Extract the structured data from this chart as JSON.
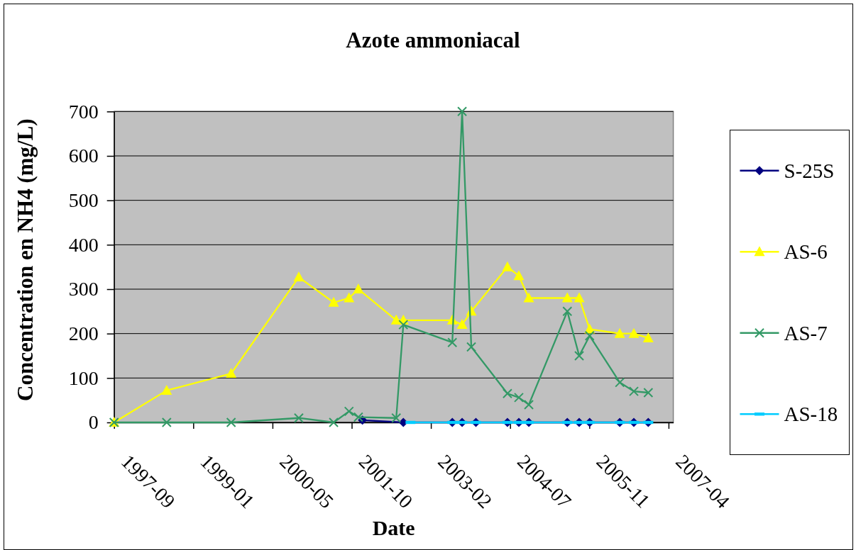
{
  "chart_data": {
    "type": "line",
    "title": "Azote ammoniacal",
    "xlabel": "Date",
    "ylabel": "Concentration en NH4 (mg/L)",
    "xlim": [
      "1997-09-02",
      "2007-05-03"
    ],
    "xticks": [
      {
        "value": "1997-09-02",
        "label": "1997-09"
      },
      {
        "value": "1999-01-15",
        "label": "1999-01"
      },
      {
        "value": "2000-05-29",
        "label": "2000-05"
      },
      {
        "value": "2001-10-11",
        "label": "2001-10"
      },
      {
        "value": "2003-02-23",
        "label": "2003-02"
      },
      {
        "value": "2004-07-07",
        "label": "2004-07"
      },
      {
        "value": "2005-11-19",
        "label": "2005-11"
      },
      {
        "value": "2007-04-03",
        "label": "2007-04"
      }
    ],
    "ylim": [
      0,
      700
    ],
    "yticks": [
      0,
      100,
      200,
      300,
      400,
      500,
      600,
      700
    ],
    "grid": "y",
    "legend": "right",
    "series": [
      {
        "name": "S-25S",
        "color": "#000080",
        "marker": "diamond",
        "x": [
          "2001-12-18",
          "2002-09-02",
          "2003-07-08",
          "2003-09-08",
          "2003-12-04",
          "2004-06-20",
          "2004-08-31",
          "2004-11-02",
          "2005-07-03",
          "2005-09-16",
          "2005-11-21",
          "2006-05-30",
          "2006-08-27",
          "2006-11-26"
        ],
        "values": [
          5,
          0,
          0,
          0,
          0,
          0,
          0,
          0,
          0,
          0,
          0,
          0,
          0,
          0
        ]
      },
      {
        "name": "AS-6",
        "color": "#ffff00",
        "marker": "triangle",
        "x": [
          "1997-09-02",
          "1998-07-31",
          "1999-09-11",
          "2000-11-11",
          "2001-06-19",
          "2001-09-24",
          "2001-11-22",
          "2002-07-19",
          "2002-09-02",
          "2003-07-08",
          "2003-09-08",
          "2003-11-05",
          "2004-06-20",
          "2004-08-31",
          "2004-11-02",
          "2005-07-03",
          "2005-09-16",
          "2005-11-21",
          "2006-05-30",
          "2006-08-27",
          "2006-11-26"
        ],
        "values": [
          0,
          72,
          110,
          327,
          270,
          280,
          300,
          230,
          230,
          230,
          220,
          250,
          350,
          330,
          280,
          280,
          280,
          210,
          200,
          200,
          190
        ]
      },
      {
        "name": "AS-7",
        "color": "#339966",
        "marker": "cross",
        "x": [
          "1997-09-02",
          "1998-07-31",
          "1999-09-11",
          "2000-11-11",
          "2001-06-19",
          "2001-09-24",
          "2001-11-22",
          "2002-07-19",
          "2002-09-02",
          "2003-07-08",
          "2003-09-08",
          "2003-11-05",
          "2004-06-20",
          "2004-08-31",
          "2004-11-02",
          "2005-07-03",
          "2005-09-16",
          "2005-11-21",
          "2006-05-30",
          "2006-08-27",
          "2006-11-26"
        ],
        "values": [
          0,
          0,
          0,
          10,
          0,
          25,
          12,
          10,
          220,
          180,
          700,
          170,
          65,
          56,
          40,
          250,
          150,
          195,
          90,
          70,
          67
        ]
      },
      {
        "name": "AS-18",
        "color": "#00ccff",
        "marker": "square",
        "x": [
          "2002-10-17",
          "2003-07-08",
          "2003-09-08",
          "2003-12-04",
          "2004-06-20",
          "2004-08-31",
          "2004-11-02",
          "2005-07-03",
          "2005-09-16",
          "2005-11-21",
          "2006-05-30",
          "2006-08-27",
          "2006-11-26"
        ],
        "values": [
          0,
          0,
          0,
          0,
          0,
          0,
          0,
          0,
          0,
          0,
          0,
          0,
          0
        ]
      }
    ]
  }
}
